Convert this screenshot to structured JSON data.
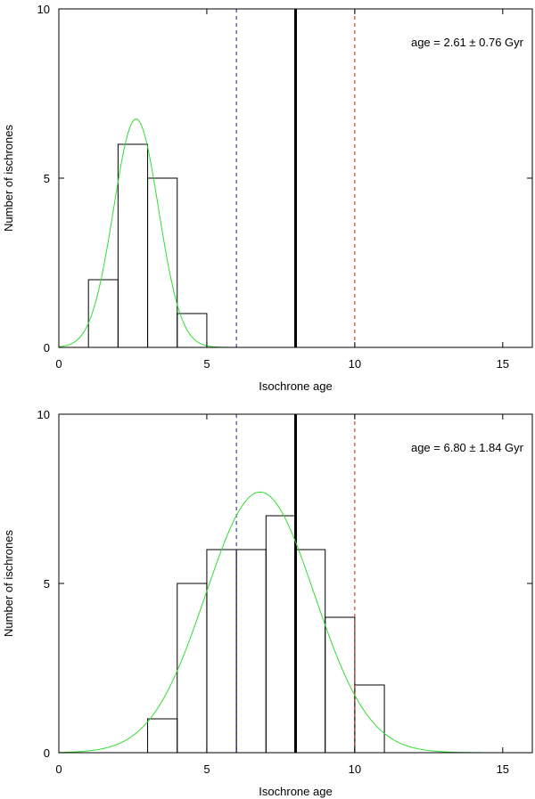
{
  "chart_data": [
    {
      "type": "bar",
      "panel": "top",
      "xlabel": "Isochrone age",
      "ylabel": "Number of ischrones",
      "xlim": [
        0,
        16
      ],
      "ylim": [
        0,
        10
      ],
      "xticks": [
        0,
        5,
        10,
        15
      ],
      "yticks": [
        0,
        5,
        10
      ],
      "bins": [
        {
          "x0": 1,
          "x1": 2,
          "count": 2
        },
        {
          "x0": 2,
          "x1": 3,
          "count": 6
        },
        {
          "x0": 3,
          "x1": 4,
          "count": 5
        },
        {
          "x0": 4,
          "x1": 5,
          "count": 1
        }
      ],
      "gaussian": {
        "mean": 2.61,
        "sigma": 0.76,
        "peak": 6.75
      },
      "vlines": [
        {
          "x": 6,
          "style": "dashed",
          "color": "#1a1a8c"
        },
        {
          "x": 8,
          "style": "solid-thick",
          "color": "#000000"
        },
        {
          "x": 10,
          "style": "dashed",
          "color": "#cc2200"
        }
      ],
      "annotation": "age = 2.61 ± 0.76 Gyr"
    },
    {
      "type": "bar",
      "panel": "bottom",
      "xlabel": "Isochrone age",
      "ylabel": "Number of ischrones",
      "xlim": [
        0,
        16
      ],
      "ylim": [
        0,
        10
      ],
      "xticks": [
        0,
        5,
        10,
        15
      ],
      "yticks": [
        0,
        5,
        10
      ],
      "bins": [
        {
          "x0": 3,
          "x1": 4,
          "count": 1
        },
        {
          "x0": 4,
          "x1": 5,
          "count": 5
        },
        {
          "x0": 5,
          "x1": 6,
          "count": 6
        },
        {
          "x0": 6,
          "x1": 7,
          "count": 6
        },
        {
          "x0": 7,
          "x1": 8,
          "count": 7
        },
        {
          "x0": 8,
          "x1": 9,
          "count": 6
        },
        {
          "x0": 9,
          "x1": 10,
          "count": 4
        },
        {
          "x0": 10,
          "x1": 11,
          "count": 2
        }
      ],
      "gaussian": {
        "mean": 6.8,
        "sigma": 1.84,
        "peak": 7.7
      },
      "vlines": [
        {
          "x": 6,
          "style": "dashed",
          "color": "#1a1a8c"
        },
        {
          "x": 8,
          "style": "solid-thick",
          "color": "#000000"
        },
        {
          "x": 10,
          "style": "dashed",
          "color": "#cc2200"
        }
      ],
      "annotation": "age = 6.80 ± 1.84 Gyr"
    }
  ],
  "colors": {
    "gaussian": "#33dd33",
    "bars": "#000000",
    "axes": "#000000"
  }
}
